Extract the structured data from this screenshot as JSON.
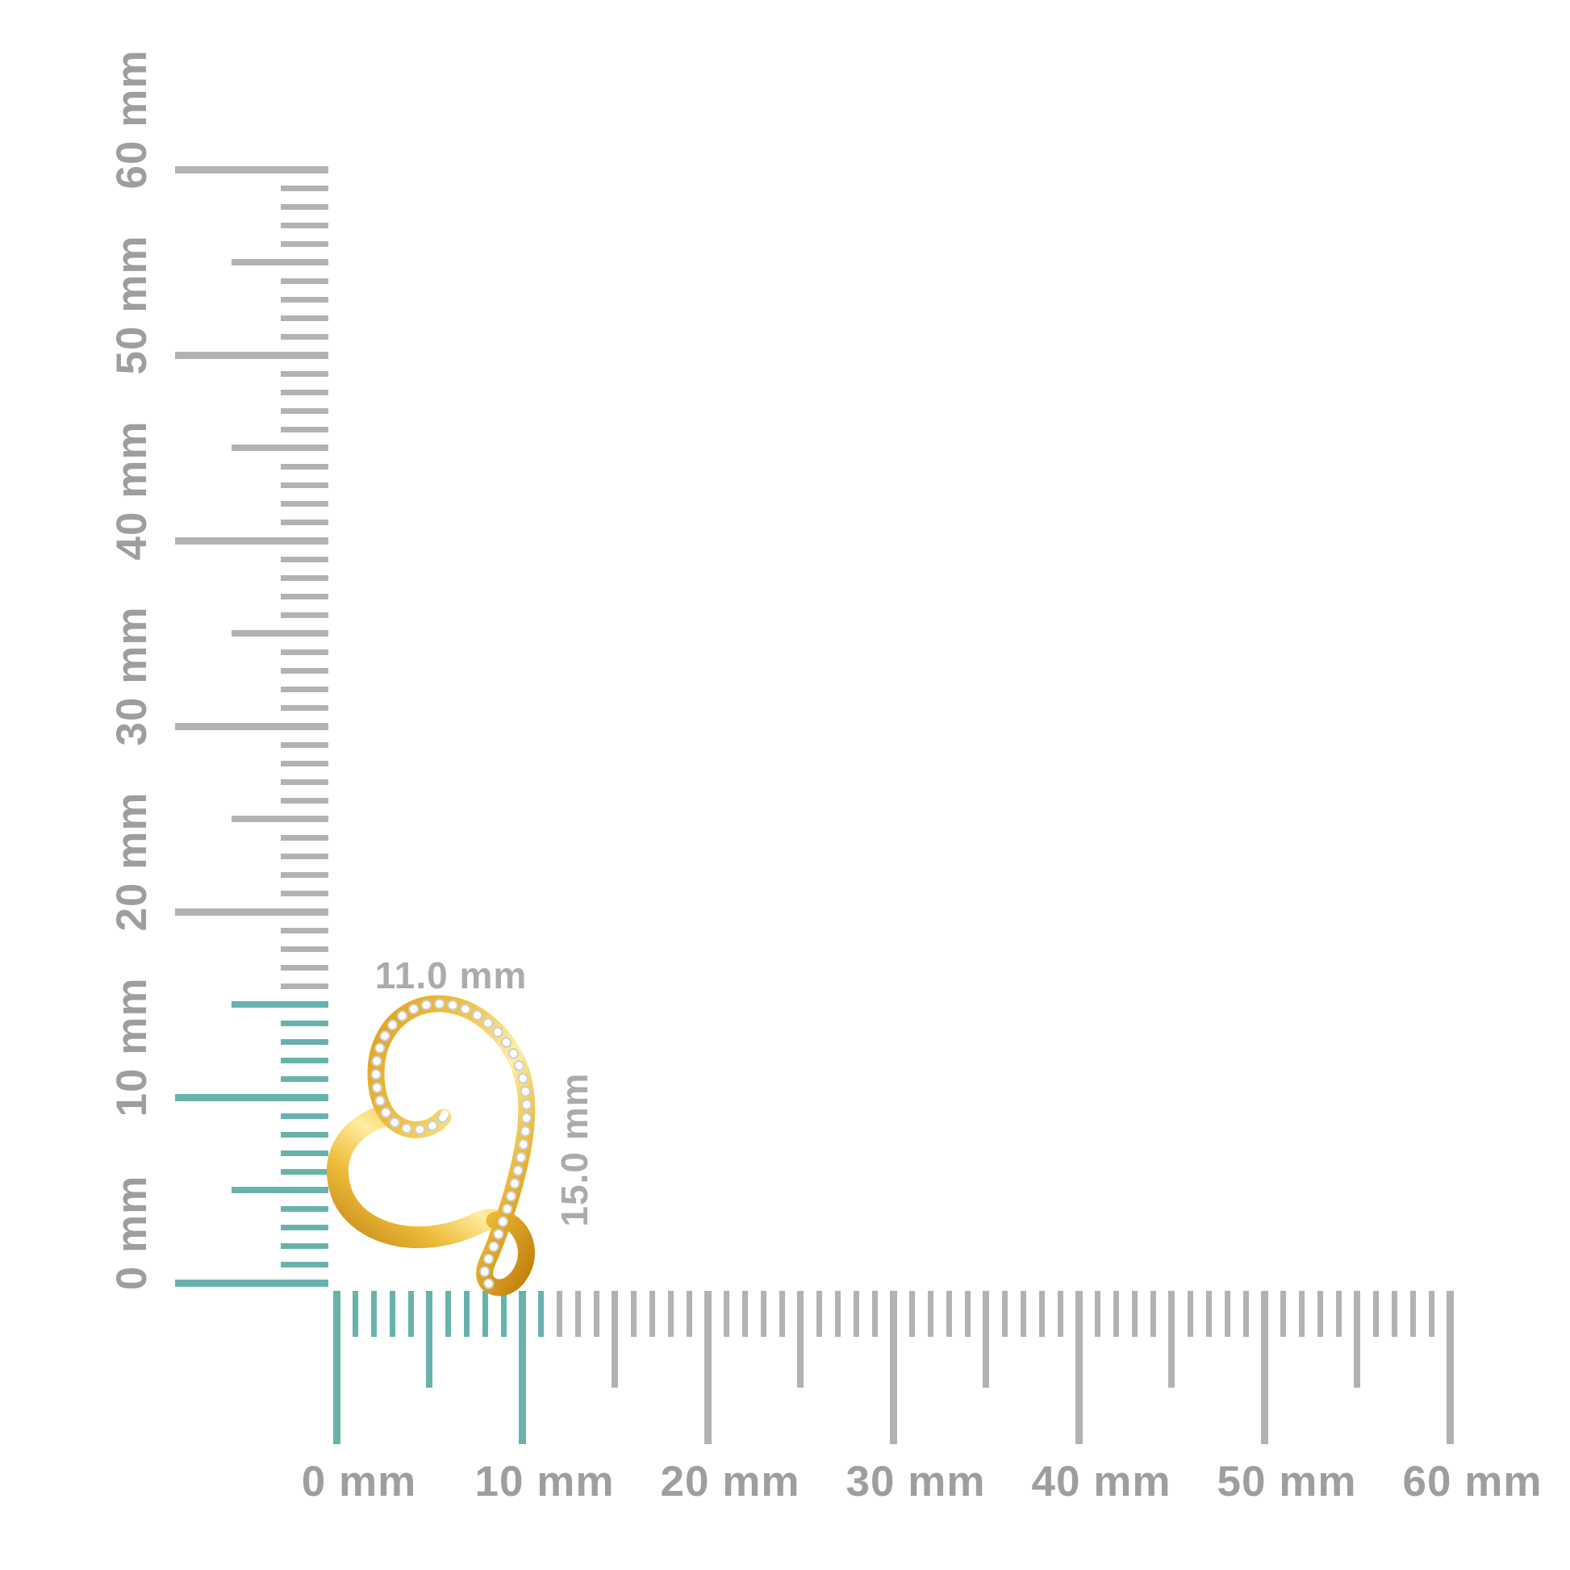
{
  "page": {
    "background": "#ffffff"
  },
  "pendant": {
    "width_label": "11.0 mm",
    "height_label": "15.0 mm",
    "label_color": "#ababab",
    "colors": {
      "gold_deep": "#c07f0e",
      "gold_amber": "#dfa01e",
      "gold_mid": "#f3c94f",
      "gold_highlight": "#ffefa3",
      "gold_shade": "#e8b12c",
      "diamond_white": "#ffffff",
      "diamond_edge": "#c8ced6"
    },
    "gold_stops_band": [
      "#dfa01e",
      "#f3c94f",
      "#ffefa3",
      "#e8b12c",
      "#c07f0e"
    ],
    "gold_stops_plain": [
      "#c6891a",
      "#eebb38",
      "#ffeda0",
      "#edbc3c",
      "#d29a1d"
    ]
  },
  "rulers": {
    "label_color": "#9e9e9e",
    "tick_gray": "#b2b2b2",
    "tick_teal": "#69b2ac",
    "vertical": {
      "orientation": "vertical",
      "unit": "mm",
      "max_mm": 60,
      "label_step_mm": 10,
      "highlight_up_to_mm": 15,
      "labels": [
        "0 mm",
        "10 mm",
        "20 mm",
        "30 mm",
        "40 mm",
        "50 mm",
        "60 mm"
      ]
    },
    "horizontal": {
      "orientation": "horizontal",
      "unit": "mm",
      "max_mm": 60,
      "label_step_mm": 10,
      "highlight_up_to_mm": 11,
      "labels": [
        "0 mm",
        "10 mm",
        "20 mm",
        "30 mm",
        "40 mm",
        "50 mm",
        "60 mm"
      ]
    }
  }
}
